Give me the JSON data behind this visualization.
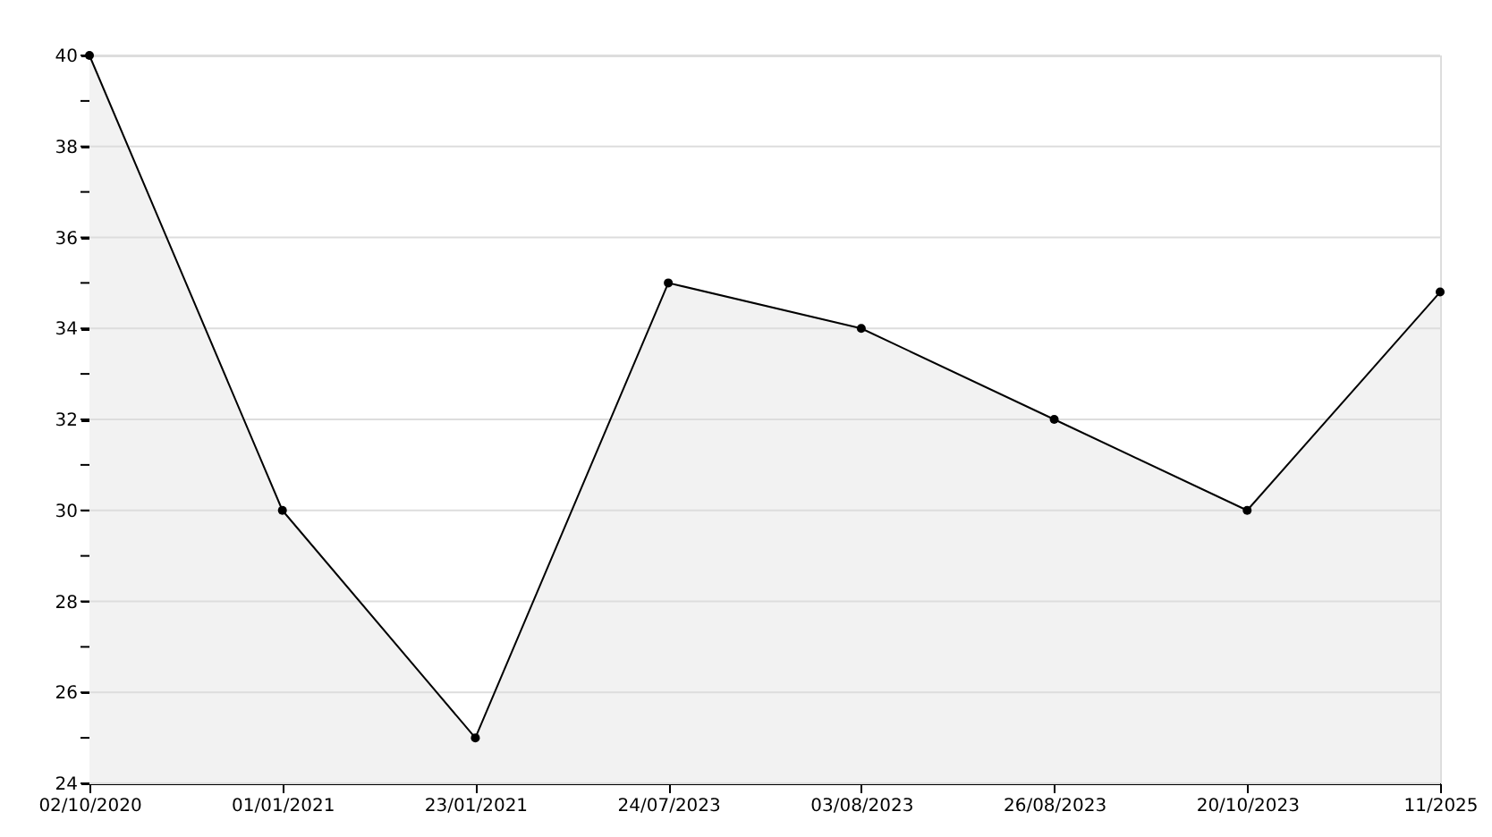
{
  "chart_data": {
    "type": "area",
    "categories": [
      "02/10/2020",
      "01/01/2021",
      "23/01/2021",
      "24/07/2023",
      "03/08/2023",
      "26/08/2023",
      "20/10/2023",
      "11/2025"
    ],
    "series": [
      {
        "color": "#000000",
        "values": [
          40,
          30,
          25,
          35,
          34,
          32,
          30,
          34.8
        ]
      }
    ],
    "ylim": [
      24,
      40
    ],
    "yticks": [
      24,
      {
        "value": 25,
        "label": null
      },
      26,
      {
        "value": 27,
        "label": null
      },
      28,
      {
        "value": 29,
        "label": null
      },
      30,
      {
        "value": 31,
        "label": null
      },
      32,
      {
        "value": 33,
        "label": null
      },
      34,
      {
        "value": 35,
        "label": null
      },
      36,
      {
        "value": 37,
        "label": null
      },
      38,
      {
        "value": 39,
        "label": null
      },
      40
    ],
    "grid": "y",
    "marker": "circle",
    "line_style": "solid"
  }
}
